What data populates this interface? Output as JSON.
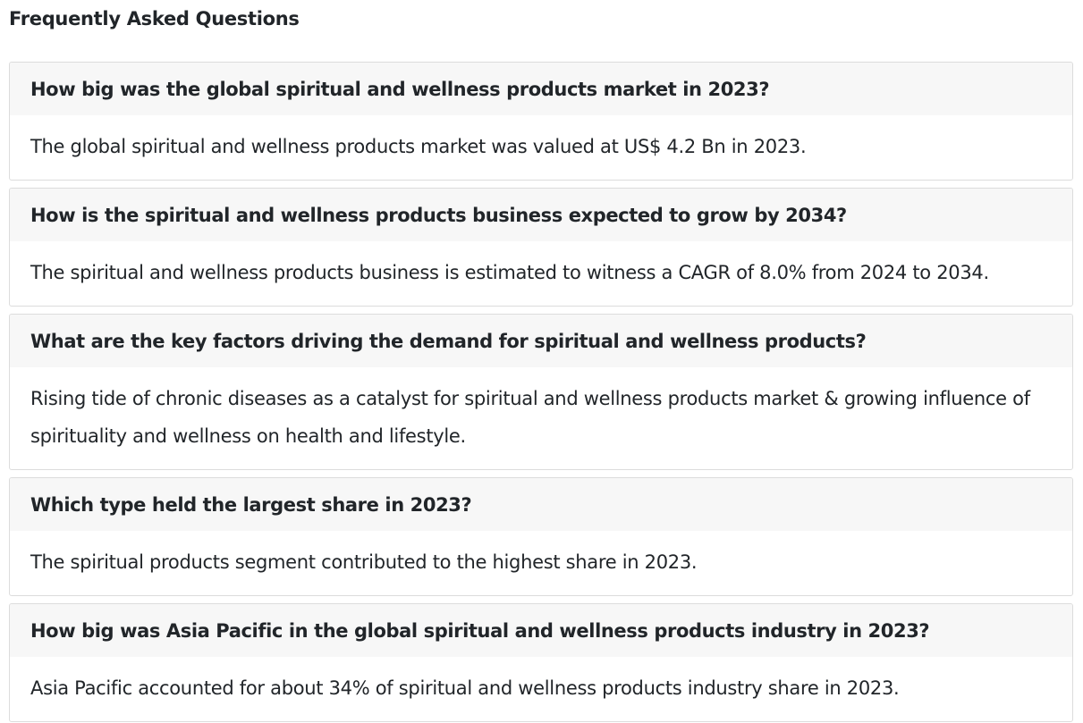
{
  "page": {
    "heading": "Frequently Asked Questions"
  },
  "faqs": [
    {
      "question": "How big was the global spiritual and wellness products market in 2023?",
      "answer": "The global spiritual and wellness products market was valued at US$ 4.2 Bn in 2023."
    },
    {
      "question": "How is the spiritual and wellness products business expected to grow by 2034?",
      "answer": "The spiritual and wellness products business is estimated to witness a CAGR of 8.0% from 2024 to 2034."
    },
    {
      "question": "What are the key factors driving the demand for spiritual and wellness products?",
      "answer": "Rising tide of chronic diseases as a catalyst for spiritual and wellness products market & growing influence of spirituality and wellness on health and lifestyle."
    },
    {
      "question": "Which type held the largest share in 2023?",
      "answer": "The spiritual products segment contributed to the highest share in 2023."
    },
    {
      "question": "How big was Asia Pacific in the global spiritual and wellness products industry in 2023?",
      "answer": "Asia Pacific accounted for about 34% of spiritual and wellness products industry share in 2023."
    }
  ]
}
